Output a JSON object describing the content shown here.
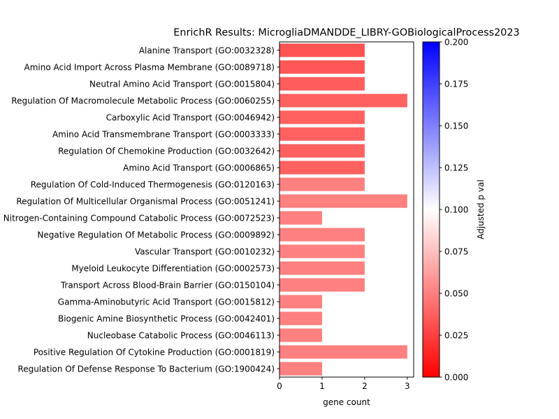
{
  "chart_data": {
    "type": "bar",
    "orientation": "horizontal",
    "title": "EnrichR Results: MicrogliaDMANDDE_LIBRY-GOBiologicalProcess2023",
    "xlabel": "gene count",
    "ylabel": "",
    "xlim": [
      0,
      3.15
    ],
    "xticks": [
      "0",
      "1",
      "2",
      "3"
    ],
    "grid": false,
    "categories": [
      "Alanine Transport (GO:0032328)",
      "Amino Acid Import Across Plasma Membrane (GO:0089718)",
      "Neutral Amino Acid Transport (GO:0015804)",
      "Regulation Of Macromolecule Metabolic Process (GO:0060255)",
      "Carboxylic Acid Transport (GO:0046942)",
      "Amino Acid Transmembrane Transport (GO:0003333)",
      "Regulation Of Chemokine Production (GO:0032642)",
      "Amino Acid Transport (GO:0006865)",
      "Regulation Of Cold-Induced Thermogenesis (GO:0120163)",
      "Regulation Of Multicellular Organismal Process (GO:0051241)",
      "Nitrogen-Containing Compound Catabolic Process (GO:0072523)",
      "Negative Regulation Of Metabolic Process (GO:0009892)",
      "Vascular Transport (GO:0010232)",
      "Myeloid Leukocyte Differentiation (GO:0002573)",
      "Transport Across Blood-Brain Barrier (GO:0150104)",
      "Gamma-Aminobutyric Acid Transport (GO:0015812)",
      "Biogenic Amine Biosynthetic Process (GO:0042401)",
      "Nucleobase Catabolic Process (GO:0046113)",
      "Positive Regulation Of Cytokine Production (GO:0001819)",
      "Regulation Of Defense Response To Bacterium (GO:1900424)"
    ],
    "values": [
      2,
      2,
      2,
      3,
      2,
      2,
      2,
      2,
      2,
      3,
      1,
      2,
      2,
      2,
      2,
      1,
      1,
      1,
      3,
      1
    ],
    "adjusted_p_val": [
      0.032,
      0.034,
      0.036,
      0.038,
      0.038,
      0.038,
      0.038,
      0.038,
      0.05,
      0.05,
      0.05,
      0.05,
      0.05,
      0.05,
      0.05,
      0.05,
      0.05,
      0.05,
      0.05,
      0.05
    ],
    "colorbar": {
      "label": "Adjusted p val",
      "range": [
        0.0,
        0.2
      ],
      "ticks": [
        "0.000",
        "0.025",
        "0.050",
        "0.075",
        "0.100",
        "0.125",
        "0.150",
        "0.175",
        "0.200"
      ],
      "colors": [
        "#ff0000",
        "#ffffff",
        "#0000ff"
      ]
    }
  }
}
